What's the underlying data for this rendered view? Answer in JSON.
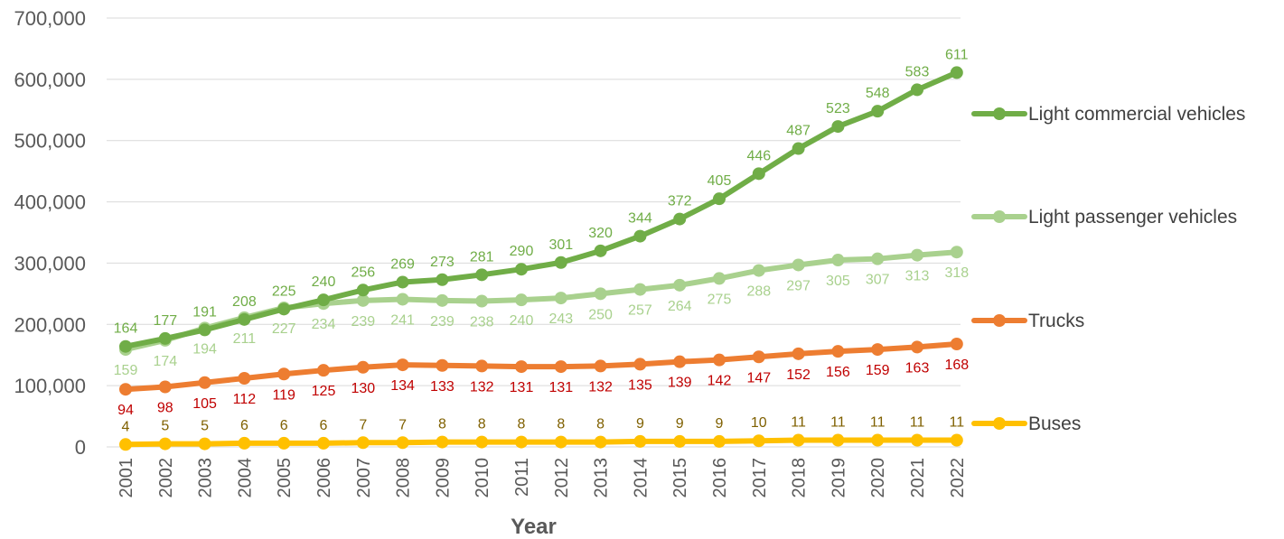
{
  "chart_data": {
    "type": "line",
    "xlabel": "Year",
    "ylabel": "",
    "ylim": [
      0,
      700000
    ],
    "yticks": [
      0,
      100000,
      200000,
      300000,
      400000,
      500000,
      600000,
      700000
    ],
    "ytick_labels": [
      "0",
      "100,000",
      "200,000",
      "300,000",
      "400,000",
      "500,000",
      "600,000",
      "700,000"
    ],
    "grid": true,
    "legend_position": "right",
    "categories": [
      "2001",
      "2002",
      "2003",
      "2004",
      "2005",
      "2006",
      "2007",
      "2008",
      "2009",
      "2010",
      "2011",
      "2012",
      "2013",
      "2014",
      "2015",
      "2016",
      "2017",
      "2018",
      "2019",
      "2020",
      "2021",
      "2022"
    ],
    "series": [
      {
        "name": "Light commercial vehicles",
        "color": "#70ad47",
        "label_color": "#70ad47",
        "label_position": "above",
        "values": [
          164000,
          177000,
          191000,
          208000,
          225000,
          240000,
          256000,
          269000,
          273000,
          281000,
          290000,
          301000,
          320000,
          344000,
          372000,
          405000,
          446000,
          487000,
          523000,
          548000,
          583000,
          611000
        ],
        "data_labels": [
          "164",
          "177",
          "191",
          "208",
          "225",
          "240",
          "256",
          "269",
          "273",
          "281",
          "290",
          "301",
          "320",
          "344",
          "372",
          "405",
          "446",
          "487",
          "523",
          "548",
          "583",
          "611"
        ]
      },
      {
        "name": "Light passenger vehicles",
        "color": "#a9d18e",
        "label_color": "#a9d18e",
        "label_position": "below",
        "values": [
          159000,
          174000,
          194000,
          211000,
          227000,
          234000,
          239000,
          241000,
          239000,
          238000,
          240000,
          243000,
          250000,
          257000,
          264000,
          275000,
          288000,
          297000,
          305000,
          307000,
          313000,
          318000
        ],
        "data_labels": [
          "159",
          "174",
          "194",
          "211",
          "227",
          "234",
          "239",
          "241",
          "239",
          "238",
          "240",
          "243",
          "250",
          "257",
          "264",
          "275",
          "288",
          "297",
          "305",
          "307",
          "313",
          "318"
        ]
      },
      {
        "name": "Trucks",
        "color": "#ed7d31",
        "label_color": "#c00000",
        "label_position": "below",
        "values": [
          94000,
          98000,
          105000,
          112000,
          119000,
          125000,
          130000,
          134000,
          133000,
          132000,
          131000,
          131000,
          132000,
          135000,
          139000,
          142000,
          147000,
          152000,
          156000,
          159000,
          163000,
          168000
        ],
        "data_labels": [
          "94",
          "98",
          "105",
          "112",
          "119",
          "125",
          "130",
          "134",
          "133",
          "132",
          "131",
          "131",
          "132",
          "135",
          "139",
          "142",
          "147",
          "152",
          "156",
          "159",
          "163",
          "168"
        ]
      },
      {
        "name": "Buses",
        "color": "#ffc000",
        "label_color": "#7f6000",
        "label_position": "above",
        "values": [
          4000,
          5000,
          5000,
          6000,
          6000,
          6000,
          7000,
          7000,
          8000,
          8000,
          8000,
          8000,
          8000,
          9000,
          9000,
          9000,
          10000,
          11000,
          11000,
          11000,
          11000,
          11000
        ],
        "data_labels": [
          "4",
          "5",
          "5",
          "6",
          "6",
          "6",
          "7",
          "7",
          "8",
          "8",
          "8",
          "8",
          "8",
          "9",
          "9",
          "9",
          "10",
          "11",
          "11",
          "11",
          "11",
          "11"
        ]
      }
    ]
  }
}
